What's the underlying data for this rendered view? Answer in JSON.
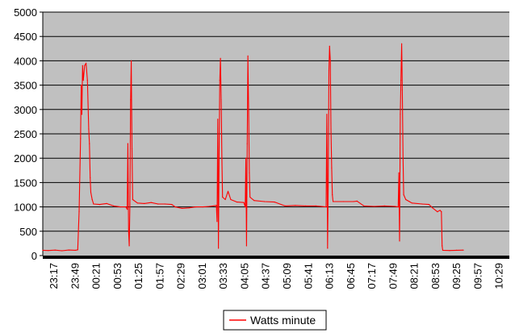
{
  "chart_data": {
    "type": "line",
    "title": "",
    "xlabel": "",
    "ylabel": "",
    "ylim": [
      0,
      5000
    ],
    "yticks": [
      0,
      500,
      1000,
      1500,
      2000,
      2500,
      3000,
      3500,
      4000,
      4500,
      5000
    ],
    "xtick_labels": [
      "23:17",
      "23:49",
      "00:21",
      "00:53",
      "01:25",
      "01:57",
      "02:29",
      "03:01",
      "03:33",
      "04:05",
      "04:37",
      "05:09",
      "05:41",
      "06:13",
      "06:45",
      "07:17",
      "07:49",
      "08:21",
      "08:53",
      "09:25",
      "09:57",
      "10:29"
    ],
    "x_minutes_range": [
      1397,
      2077
    ],
    "grid": "horizontal",
    "background_color": "#c0c0c0",
    "line_color": "#ff0000",
    "legend": {
      "position": "bottom",
      "entries": [
        "Watts minute"
      ]
    },
    "series": [
      {
        "name": "Watts minute",
        "points": [
          [
            "23:17",
            110
          ],
          [
            "23:25",
            105
          ],
          [
            "23:35",
            112
          ],
          [
            "23:45",
            100
          ],
          [
            "23:55",
            115
          ],
          [
            "00:05",
            110
          ],
          [
            "00:08",
            120
          ],
          [
            "00:10",
            900
          ],
          [
            "00:12",
            2400
          ],
          [
            "00:13",
            3500
          ],
          [
            "00:14",
            2900
          ],
          [
            "00:15",
            3900
          ],
          [
            "00:16",
            3600
          ],
          [
            "00:18",
            3900
          ],
          [
            "00:20",
            3950
          ],
          [
            "00:22",
            3600
          ],
          [
            "00:24",
            2600
          ],
          [
            "00:25",
            2300
          ],
          [
            "00:26",
            1600
          ],
          [
            "00:27",
            1300
          ],
          [
            "00:29",
            1150
          ],
          [
            "00:31",
            1060
          ],
          [
            "00:40",
            1050
          ],
          [
            "00:50",
            1070
          ],
          [
            "01:00",
            1020
          ],
          [
            "01:10",
            1000
          ],
          [
            "01:18",
            1000
          ],
          [
            "01:20",
            950
          ],
          [
            "01:21",
            2300
          ],
          [
            "01:22",
            500
          ],
          [
            "01:23",
            200
          ],
          [
            "01:24",
            1000
          ],
          [
            "01:25",
            3200
          ],
          [
            "01:26",
            4000
          ],
          [
            "01:27",
            2200
          ],
          [
            "01:28",
            1150
          ],
          [
            "01:35",
            1080
          ],
          [
            "01:45",
            1070
          ],
          [
            "01:55",
            1090
          ],
          [
            "02:05",
            1060
          ],
          [
            "02:15",
            1060
          ],
          [
            "02:25",
            1050
          ],
          [
            "02:30",
            1000
          ],
          [
            "02:40",
            970
          ],
          [
            "02:50",
            980
          ],
          [
            "03:00",
            1000
          ],
          [
            "03:10",
            1000
          ],
          [
            "03:20",
            1010
          ],
          [
            "03:30",
            1030
          ],
          [
            "03:31",
            700
          ],
          [
            "03:32",
            2800
          ],
          [
            "03:33",
            150
          ],
          [
            "03:34",
            2000
          ],
          [
            "03:35",
            3600
          ],
          [
            "03:36",
            4050
          ],
          [
            "03:37",
            3200
          ],
          [
            "03:38",
            2000
          ],
          [
            "03:39",
            1200
          ],
          [
            "03:43",
            1150
          ],
          [
            "03:47",
            1320
          ],
          [
            "03:51",
            1150
          ],
          [
            "04:00",
            1100
          ],
          [
            "04:10",
            1090
          ],
          [
            "04:12",
            1000
          ],
          [
            "04:13",
            2000
          ],
          [
            "04:14",
            200
          ],
          [
            "04:15",
            2300
          ],
          [
            "04:16",
            4100
          ],
          [
            "04:17",
            3000
          ],
          [
            "04:18",
            1700
          ],
          [
            "04:19",
            1200
          ],
          [
            "04:25",
            1130
          ],
          [
            "04:40",
            1110
          ],
          [
            "04:55",
            1100
          ],
          [
            "05:10",
            1020
          ],
          [
            "05:25",
            1030
          ],
          [
            "05:40",
            1020
          ],
          [
            "05:55",
            1020
          ],
          [
            "06:10",
            1000
          ],
          [
            "06:11",
            2900
          ],
          [
            "06:12",
            150
          ],
          [
            "06:13",
            1500
          ],
          [
            "06:14",
            3800
          ],
          [
            "06:15",
            4300
          ],
          [
            "06:16",
            4000
          ],
          [
            "06:17",
            2600
          ],
          [
            "06:18",
            1800
          ],
          [
            "06:19",
            1250
          ],
          [
            "06:20",
            1110
          ],
          [
            "06:35",
            1110
          ],
          [
            "06:50",
            1110
          ],
          [
            "06:55",
            1120
          ],
          [
            "07:05",
            1020
          ],
          [
            "07:20",
            1010
          ],
          [
            "07:35",
            1020
          ],
          [
            "07:50",
            1010
          ],
          [
            "07:55",
            1000
          ],
          [
            "07:56",
            1700
          ],
          [
            "07:57",
            300
          ],
          [
            "07:58",
            2900
          ],
          [
            "07:59",
            3600
          ],
          [
            "08:00",
            4350
          ],
          [
            "08:01",
            3400
          ],
          [
            "08:02",
            2000
          ],
          [
            "08:03",
            1250
          ],
          [
            "08:06",
            1150
          ],
          [
            "08:15",
            1080
          ],
          [
            "08:30",
            1060
          ],
          [
            "08:40",
            1050
          ],
          [
            "08:45",
            980
          ],
          [
            "08:52",
            900
          ],
          [
            "08:56",
            930
          ],
          [
            "08:58",
            900
          ],
          [
            "08:59",
            200
          ],
          [
            "09:00",
            110
          ],
          [
            "09:10",
            105
          ],
          [
            "09:20",
            110
          ],
          [
            "09:30",
            112
          ]
        ]
      }
    ]
  }
}
